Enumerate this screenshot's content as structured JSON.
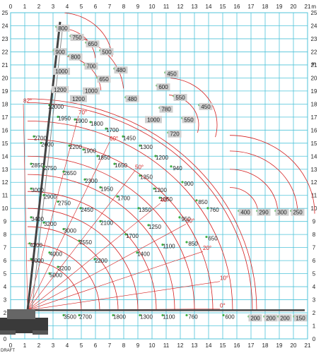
{
  "chart_data": {
    "type": "scatter",
    "title": "",
    "xlabel": "",
    "ylabel": "",
    "x_unit": "m",
    "y_unit": "m",
    "xlim": [
      0,
      21
    ],
    "ylim": [
      0,
      25
    ],
    "x_ticks": [
      "0",
      "1",
      "2",
      "3",
      "4",
      "5",
      "6",
      "7",
      "8",
      "9",
      "10",
      "11",
      "12",
      "13",
      "14",
      "15",
      "16",
      "17",
      "18",
      "19",
      "20",
      "21"
    ],
    "y_ticks": [
      "0",
      "1",
      "2",
      "3",
      "4",
      "5",
      "6",
      "7",
      "8",
      "9",
      "10",
      "11",
      "12",
      "13",
      "14",
      "15",
      "16",
      "17",
      "18",
      "19",
      "20",
      "21",
      "22",
      "23",
      "24",
      "25"
    ],
    "grid": true,
    "watermark": "DRAFT",
    "boom_angles": [
      {
        "label": "82°",
        "x": 0.9,
        "y": 18.0
      },
      {
        "label": "70°",
        "x": 4.8,
        "y": 17.1
      },
      {
        "label": "60°",
        "x": 7.0,
        "y": 15.1
      },
      {
        "label": "50°",
        "x": 8.8,
        "y": 12.9
      },
      {
        "label": "40°",
        "x": 10.6,
        "y": 10.4
      },
      {
        "label": "30°",
        "x": 12.4,
        "y": 8.8
      },
      {
        "label": "20°",
        "x": 13.6,
        "y": 6.7
      },
      {
        "label": "10°",
        "x": 14.8,
        "y": 4.4
      },
      {
        "label": "0°",
        "x": 14.8,
        "y": 2.3
      }
    ],
    "load_labels": [
      {
        "text": "800",
        "x": 3.7,
        "y": 23.7,
        "boxed": true
      },
      {
        "text": "750",
        "x": 4.7,
        "y": 23.0,
        "boxed": true
      },
      {
        "text": "650",
        "x": 5.8,
        "y": 22.5,
        "boxed": true
      },
      {
        "text": "500",
        "x": 6.8,
        "y": 21.9,
        "boxed": true
      },
      {
        "text": "900",
        "x": 3.5,
        "y": 21.9,
        "boxed": true
      },
      {
        "text": "800",
        "x": 4.6,
        "y": 21.5,
        "boxed": true
      },
      {
        "text": "700",
        "x": 5.7,
        "y": 20.8,
        "boxed": true
      },
      {
        "text": "480",
        "x": 7.8,
        "y": 20.5,
        "boxed": true
      },
      {
        "text": "1000",
        "x": 3.6,
        "y": 20.4,
        "boxed": true
      },
      {
        "text": "650",
        "x": 6.6,
        "y": 19.8,
        "boxed": true
      },
      {
        "text": "1200",
        "x": 3.5,
        "y": 19.0,
        "boxed": true
      },
      {
        "text": "1000",
        "x": 5.7,
        "y": 18.9,
        "boxed": true
      },
      {
        "text": "1200",
        "x": 4.8,
        "y": 18.3,
        "boxed": true
      },
      {
        "text": "480",
        "x": 8.6,
        "y": 18.3,
        "boxed": true
      },
      {
        "text": "450",
        "x": 11.4,
        "y": 20.2,
        "boxed": true
      },
      {
        "text": "600",
        "x": 10.8,
        "y": 19.2,
        "boxed": true
      },
      {
        "text": "550",
        "x": 12.0,
        "y": 18.4,
        "boxed": true
      },
      {
        "text": "450",
        "x": 13.8,
        "y": 17.7,
        "boxed": true
      },
      {
        "text": "780",
        "x": 11.0,
        "y": 17.5,
        "boxed": true
      },
      {
        "text": "550",
        "x": 12.6,
        "y": 16.7,
        "boxed": true
      },
      {
        "text": "1000",
        "x": 10.1,
        "y": 16.7,
        "boxed": true
      },
      {
        "text": "720",
        "x": 11.6,
        "y": 15.6,
        "boxed": true
      },
      {
        "text": "12000",
        "x": 3.2,
        "y": 17.7,
        "boxed": false
      },
      {
        "text": "1950",
        "x": 3.8,
        "y": 16.8,
        "boxed": false
      },
      {
        "text": "1900",
        "x": 5.0,
        "y": 16.6,
        "boxed": false
      },
      {
        "text": "1800",
        "x": 6.1,
        "y": 16.4,
        "boxed": false
      },
      {
        "text": "1700",
        "x": 7.2,
        "y": 15.9,
        "boxed": false
      },
      {
        "text": "1450",
        "x": 8.4,
        "y": 15.3,
        "boxed": false
      },
      {
        "text": "1300",
        "x": 9.6,
        "y": 14.6,
        "boxed": false
      },
      {
        "text": "1200",
        "x": 10.7,
        "y": 13.8,
        "boxed": false
      },
      {
        "text": "940",
        "x": 11.8,
        "y": 13.0,
        "boxed": false
      },
      {
        "text": "900",
        "x": 12.6,
        "y": 11.8,
        "boxed": false
      },
      {
        "text": "850",
        "x": 13.6,
        "y": 10.4,
        "boxed": false
      },
      {
        "text": "760",
        "x": 14.4,
        "y": 9.8,
        "boxed": false
      },
      {
        "text": "2700",
        "x": 2.1,
        "y": 15.3,
        "boxed": false
      },
      {
        "text": "2600",
        "x": 2.6,
        "y": 14.8,
        "boxed": false
      },
      {
        "text": "2200",
        "x": 4.6,
        "y": 14.6,
        "boxed": false
      },
      {
        "text": "1900",
        "x": 5.6,
        "y": 14.3,
        "boxed": false
      },
      {
        "text": "1850",
        "x": 6.6,
        "y": 13.8,
        "boxed": false
      },
      {
        "text": "1650",
        "x": 7.8,
        "y": 13.2,
        "boxed": false
      },
      {
        "text": "1350",
        "x": 9.6,
        "y": 12.3,
        "boxed": false
      },
      {
        "text": "1200",
        "x": 10.6,
        "y": 11.3,
        "boxed": false
      },
      {
        "text": "2850",
        "x": 1.9,
        "y": 13.2,
        "boxed": false
      },
      {
        "text": "2750",
        "x": 2.8,
        "y": 13.0,
        "boxed": false
      },
      {
        "text": "2650",
        "x": 4.2,
        "y": 12.6,
        "boxed": false
      },
      {
        "text": "2300",
        "x": 5.7,
        "y": 12.0,
        "boxed": false
      },
      {
        "text": "1950",
        "x": 6.8,
        "y": 11.4,
        "boxed": false
      },
      {
        "text": "1700",
        "x": 8.0,
        "y": 10.7,
        "boxed": false
      },
      {
        "text": "1050",
        "x": 11.0,
        "y": 10.6,
        "boxed": false
      },
      {
        "text": "3000",
        "x": 1.9,
        "y": 11.3,
        "boxed": false
      },
      {
        "text": "2900",
        "x": 2.8,
        "y": 10.8,
        "boxed": false
      },
      {
        "text": "2750",
        "x": 3.8,
        "y": 10.3,
        "boxed": false
      },
      {
        "text": "2450",
        "x": 5.4,
        "y": 9.8,
        "boxed": false
      },
      {
        "text": "1350",
        "x": 9.5,
        "y": 9.8,
        "boxed": false
      },
      {
        "text": "950",
        "x": 12.4,
        "y": 9.1,
        "boxed": false
      },
      {
        "text": "3400",
        "x": 1.9,
        "y": 9.1,
        "boxed": false
      },
      {
        "text": "3200",
        "x": 2.8,
        "y": 8.7,
        "boxed": false
      },
      {
        "text": "3000",
        "x": 4.2,
        "y": 8.2,
        "boxed": false
      },
      {
        "text": "2100",
        "x": 6.8,
        "y": 8.8,
        "boxed": false
      },
      {
        "text": "1250",
        "x": 10.2,
        "y": 8.5,
        "boxed": false
      },
      {
        "text": "4200",
        "x": 1.8,
        "y": 7.1,
        "boxed": false
      },
      {
        "text": "4000",
        "x": 3.2,
        "y": 6.4,
        "boxed": false
      },
      {
        "text": "2550",
        "x": 5.3,
        "y": 7.3,
        "boxed": false
      },
      {
        "text": "1700",
        "x": 8.6,
        "y": 7.8,
        "boxed": false
      },
      {
        "text": "5000",
        "x": 1.9,
        "y": 5.9,
        "boxed": false
      },
      {
        "text": "3200",
        "x": 3.8,
        "y": 5.3,
        "boxed": false
      },
      {
        "text": "2200",
        "x": 6.4,
        "y": 5.9,
        "boxed": false
      },
      {
        "text": "1400",
        "x": 9.4,
        "y": 6.4,
        "boxed": false
      },
      {
        "text": "1100",
        "x": 11.2,
        "y": 7.0,
        "boxed": false
      },
      {
        "text": "850",
        "x": 12.9,
        "y": 7.2,
        "boxed": false
      },
      {
        "text": "650",
        "x": 14.3,
        "y": 7.6,
        "boxed": false
      },
      {
        "text": "5000",
        "x": 3.2,
        "y": 4.8,
        "boxed": false
      },
      {
        "text": "400",
        "x": 16.6,
        "y": 9.6,
        "boxed": true
      },
      {
        "text": "290",
        "x": 17.9,
        "y": 9.6,
        "boxed": true
      },
      {
        "text": "300",
        "x": 19.2,
        "y": 9.6,
        "boxed": true
      },
      {
        "text": "250",
        "x": 20.3,
        "y": 9.6,
        "boxed": true
      },
      {
        "text": "3500",
        "x": 4.2,
        "y": 1.6,
        "boxed": false
      },
      {
        "text": "2700",
        "x": 5.3,
        "y": 1.6,
        "boxed": false
      },
      {
        "text": "1800",
        "x": 7.7,
        "y": 1.6,
        "boxed": false
      },
      {
        "text": "1300",
        "x": 9.6,
        "y": 1.6,
        "boxed": false
      },
      {
        "text": "1100",
        "x": 11.2,
        "y": 1.6,
        "boxed": false
      },
      {
        "text": "760",
        "x": 12.9,
        "y": 1.6,
        "boxed": false
      },
      {
        "text": "600",
        "x": 15.5,
        "y": 1.6,
        "boxed": false
      },
      {
        "text": "200",
        "x": 17.3,
        "y": 1.5,
        "boxed": true
      },
      {
        "text": "200",
        "x": 18.4,
        "y": 1.5,
        "boxed": true
      },
      {
        "text": "200",
        "x": 19.4,
        "y": 1.5,
        "boxed": true
      },
      {
        "text": "150",
        "x": 20.5,
        "y": 1.5,
        "boxed": true
      }
    ],
    "envelope_radii_m": [
      3.8,
      5.1,
      6.4,
      7.8,
      9.1,
      10.4,
      11.8,
      13.1,
      14.5,
      15.9,
      16.2
    ],
    "boom_base": {
      "x": 1.2,
      "y": 2.2
    },
    "fly_jib_arcs": [
      {
        "cx": 3.5,
        "cy": 21.3,
        "r": 2.5,
        "from_deg": 5,
        "to_deg": 85
      },
      {
        "cx": 3.5,
        "cy": 21.3,
        "r": 3.7,
        "from_deg": 5,
        "to_deg": 85
      },
      {
        "cx": 3.5,
        "cy": 18.8,
        "r": 2.9,
        "from_deg": 5,
        "to_deg": 80
      },
      {
        "cx": 3.5,
        "cy": 18.8,
        "r": 4.5,
        "from_deg": 5,
        "to_deg": 80
      },
      {
        "cx": 11.0,
        "cy": 16.4,
        "r": 2.3,
        "from_deg": -15,
        "to_deg": 85
      },
      {
        "cx": 11.0,
        "cy": 16.4,
        "r": 3.6,
        "from_deg": -15,
        "to_deg": 85
      }
    ],
    "extension_arcs": [
      {
        "cx": 15.5,
        "cy": 9.6,
        "r": 2.0,
        "from_deg": 0,
        "to_deg": 90
      },
      {
        "cx": 15.5,
        "cy": 9.6,
        "r": 3.4,
        "from_deg": 0,
        "to_deg": 90
      },
      {
        "cx": 15.5,
        "cy": 9.6,
        "r": 4.8,
        "from_deg": 0,
        "to_deg": 90
      },
      {
        "cx": 15.5,
        "cy": 9.6,
        "r": 6.0,
        "from_deg": 0,
        "to_deg": 90
      }
    ],
    "ground_boom": {
      "y": 2.2,
      "x_from": 1.2,
      "x_to": 20.8
    }
  }
}
